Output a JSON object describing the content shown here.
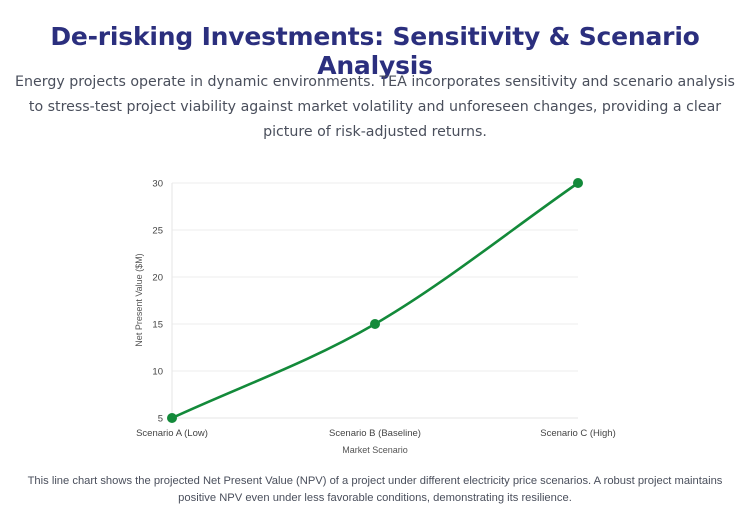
{
  "header": {
    "title": "De-risking Investments: Sensitivity & Scenario Analysis",
    "subtitle": "Energy projects operate in dynamic environments. TEA incorporates sensitivity and scenario analysis to stress-test project viability against market volatility and unforeseen changes, providing a clear picture of risk-adjusted returns."
  },
  "chart_data": {
    "type": "line",
    "categories": [
      "Scenario A (Low)",
      "Scenario B (Baseline)",
      "Scenario C (High)"
    ],
    "values": [
      5,
      15,
      30
    ],
    "xlabel": "Market Scenario",
    "ylabel": "Net Present Value ($M)",
    "ylim": [
      5,
      30
    ],
    "yticks": [
      5,
      10,
      15,
      20,
      25,
      30
    ],
    "grid": true,
    "line_color": "#138a3a"
  },
  "caption": "This line chart shows the projected Net Present Value (NPV) of a project under different electricity price scenarios. A robust project maintains positive NPV even under less favorable conditions, demonstrating its resilience."
}
